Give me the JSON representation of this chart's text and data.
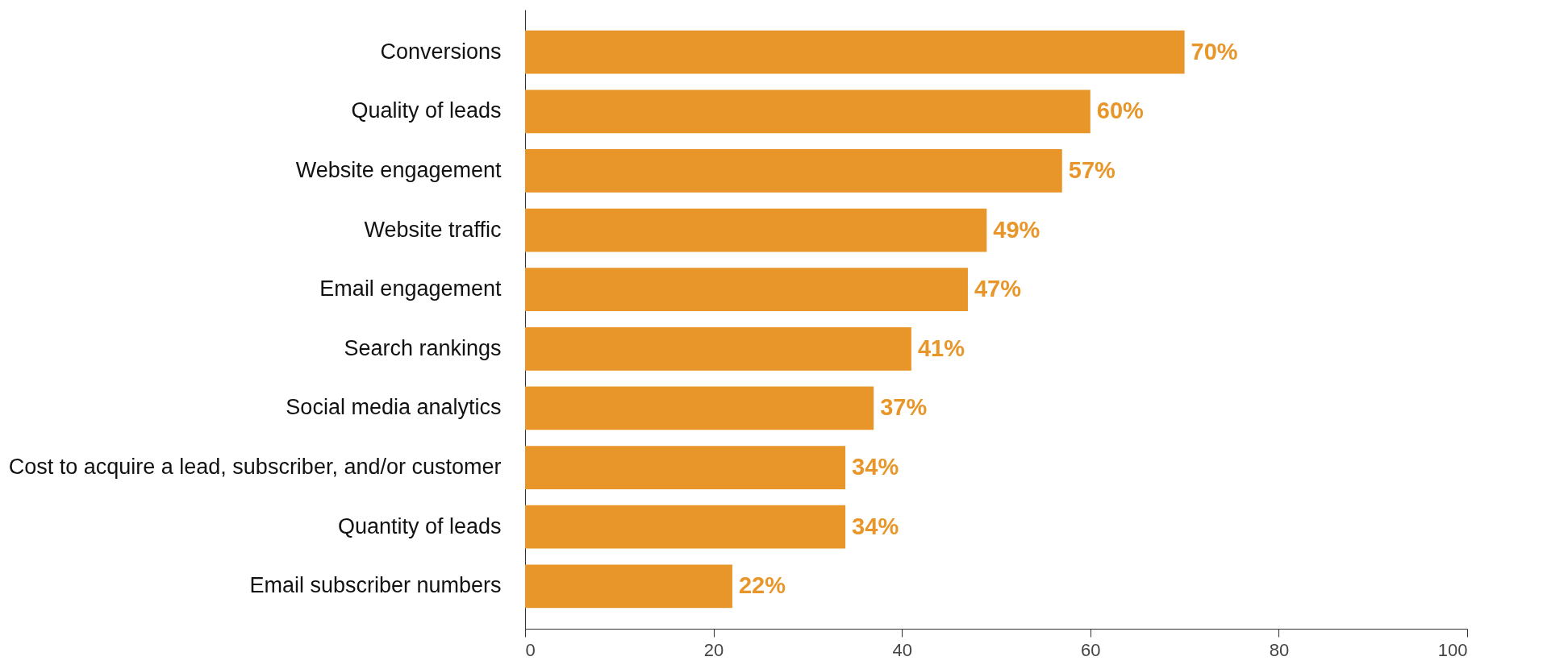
{
  "chart_data": {
    "type": "bar",
    "orientation": "horizontal",
    "categories": [
      "Conversions",
      "Quality of leads",
      "Website engagement",
      "Website traffic",
      "Email engagement",
      "Search rankings",
      "Social media analytics",
      "Cost to acquire a lead, subscriber, and/or customer",
      "Quantity of leads",
      "Email subscriber numbers"
    ],
    "values": [
      70,
      60,
      57,
      49,
      47,
      41,
      37,
      34,
      34,
      22
    ],
    "value_labels": [
      "70%",
      "60%",
      "57%",
      "49%",
      "47%",
      "41%",
      "37%",
      "34%",
      "34%",
      "22%"
    ],
    "color": "#e8962a",
    "xlim": [
      0,
      100
    ],
    "xticks": [
      0,
      20,
      40,
      60,
      80,
      100
    ]
  }
}
